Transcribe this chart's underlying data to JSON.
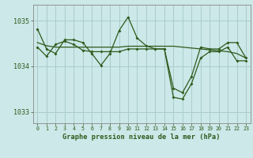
{
  "background_color": "#cce8e8",
  "grid_color": "#aacccc",
  "line_color": "#2d5a1b",
  "title": "Graphe pression niveau de la mer (hPa)",
  "xlim": [
    -0.5,
    23.5
  ],
  "ylim": [
    1032.75,
    1035.35
  ],
  "yticks": [
    1033,
    1034,
    1035
  ],
  "xticks": [
    0,
    1,
    2,
    3,
    4,
    5,
    6,
    7,
    8,
    9,
    10,
    11,
    12,
    13,
    14,
    15,
    16,
    17,
    18,
    19,
    20,
    21,
    22,
    23
  ],
  "series1": [
    1034.82,
    1034.38,
    1034.28,
    1034.58,
    1034.58,
    1034.52,
    1034.28,
    1034.02,
    1034.28,
    1034.78,
    1035.08,
    1034.62,
    1034.45,
    1034.38,
    1034.38,
    1033.52,
    1033.42,
    1033.78,
    1034.42,
    1034.38,
    1034.38,
    1034.52,
    1034.52,
    1034.18
  ],
  "series2": [
    1034.42,
    1034.22,
    1034.48,
    1034.55,
    1034.48,
    1034.35,
    1034.32,
    1034.32,
    1034.32,
    1034.32,
    1034.38,
    1034.38,
    1034.38,
    1034.38,
    1034.38,
    1033.32,
    1033.28,
    1033.62,
    1034.18,
    1034.32,
    1034.32,
    1034.42,
    1034.12,
    1034.12
  ],
  "trend": [
    1034.52,
    1034.45,
    1034.42,
    1034.42,
    1034.42,
    1034.42,
    1034.42,
    1034.42,
    1034.42,
    1034.42,
    1034.44,
    1034.44,
    1034.44,
    1034.44,
    1034.44,
    1034.44,
    1034.42,
    1034.4,
    1034.38,
    1034.36,
    1034.34,
    1034.32,
    1034.28,
    1034.18
  ],
  "ytick_fontsize": 6.0,
  "xtick_fontsize": 4.8,
  "xlabel_fontsize": 6.2
}
